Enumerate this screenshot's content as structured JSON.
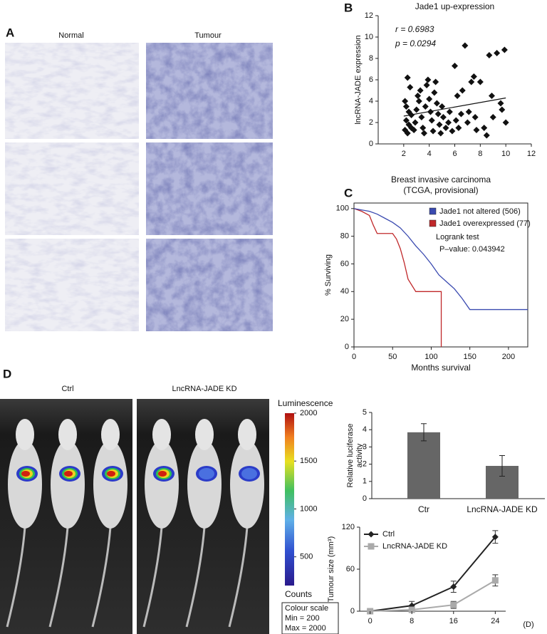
{
  "figure": {
    "panel_a": {
      "letter": "A",
      "normal": "Normal",
      "tumour": "Tumour"
    },
    "panel_b": {
      "letter": "B"
    },
    "panel_c": {
      "letter": "C"
    },
    "panel_d": {
      "letter": "D",
      "ctrl": "Ctrl",
      "kd": "LncRNA-JADE KD"
    }
  },
  "chart_data": [
    {
      "type": "scatter",
      "title": "Jade1 up-expression",
      "ylabel": "lncRNA-JADE expression",
      "annotations": [
        "r = 0.6983",
        "p = 0.0294"
      ],
      "color": "#111",
      "x": [
        2.3,
        2.5,
        2.1,
        2.2,
        2.4,
        2.6,
        2.2,
        2.4,
        2.6,
        2.1,
        2.3,
        2.8,
        2.9,
        3.0,
        3.1,
        3.2,
        3.3,
        3.4,
        3.5,
        3.6,
        3.7,
        3.8,
        3.9,
        4.0,
        4.1,
        4.2,
        4.3,
        4.4,
        4.5,
        4.6,
        4.7,
        4.8,
        4.9,
        5.0,
        5.1,
        5.3,
        5.5,
        5.6,
        5.8,
        6.0,
        6.1,
        6.2,
        6.3,
        6.5,
        6.6,
        6.8,
        7.0,
        7.1,
        7.3,
        7.5,
        7.6,
        7.7,
        8.0,
        8.3,
        8.5,
        8.7,
        8.9,
        9.0,
        9.3,
        9.6,
        9.7,
        9.9,
        10.0
      ],
      "y": [
        6.2,
        5.3,
        4.0,
        3.5,
        3.0,
        2.7,
        2.2,
        1.8,
        1.5,
        1.3,
        1.0,
        1.3,
        2.0,
        3.2,
        4.5,
        4.0,
        5.0,
        2.5,
        1.5,
        1.0,
        3.5,
        5.5,
        6.0,
        4.2,
        3.0,
        2.2,
        1.2,
        4.8,
        5.8,
        3.8,
        2.8,
        1.8,
        1.0,
        3.5,
        2.5,
        1.5,
        2.0,
        3.0,
        1.2,
        7.3,
        2.2,
        4.5,
        1.5,
        2.8,
        5.0,
        9.2,
        2.0,
        3.0,
        5.8,
        6.3,
        2.5,
        1.3,
        5.8,
        1.5,
        0.8,
        8.3,
        4.5,
        2.5,
        8.5,
        3.8,
        3.2,
        8.8,
        2.0
      ],
      "trendline": {
        "x": [
          2,
          10
        ],
        "y": [
          2.6,
          4.3
        ]
      },
      "xlim": [
        0,
        12
      ],
      "ylim": [
        0,
        12
      ],
      "xticks": [
        2,
        4,
        6,
        8,
        10,
        12
      ],
      "yticks": [
        0,
        2,
        4,
        6,
        8,
        10,
        12
      ]
    },
    {
      "type": "line",
      "title": [
        "Breast invasive carcinoma",
        "(TCGA, provisional)"
      ],
      "xlabel": "Months survival",
      "ylabel": "% Surviving",
      "annotations": [
        "Logrank test",
        "P–value:  0.043942"
      ],
      "series": [
        {
          "name": "Jade1 not altered (506)",
          "color": "#3a4ab0",
          "x": [
            0,
            10,
            20,
            30,
            40,
            50,
            60,
            70,
            80,
            90,
            100,
            110,
            120,
            130,
            140,
            150,
            160,
            225
          ],
          "values": [
            100,
            99,
            98,
            96,
            93,
            90,
            86,
            80,
            73,
            67,
            60,
            52,
            47,
            42,
            35,
            27,
            27,
            27
          ]
        },
        {
          "name": "Jade1 overexpressed (77)",
          "color": "#c0282a",
          "x": [
            0,
            10,
            20,
            25,
            30,
            50,
            55,
            60,
            65,
            70,
            80,
            100,
            113,
            113
          ],
          "values": [
            100,
            98,
            95,
            88,
            82,
            82,
            78,
            71,
            61,
            49,
            40,
            40,
            40,
            0
          ]
        }
      ],
      "xlim": [
        0,
        225
      ],
      "ylim": [
        0,
        104
      ],
      "xticks": [
        0,
        50,
        100,
        150,
        200
      ],
      "yticks": [
        0,
        20,
        40,
        60,
        80,
        100
      ]
    },
    {
      "type": "bar",
      "ylabel": [
        "Relative luciferase",
        "activity"
      ],
      "color": "#666",
      "categories": [
        "Ctr",
        "LncRNA-JADE KD"
      ],
      "values": [
        3.85,
        1.9
      ],
      "errors": [
        0.5,
        0.6
      ],
      "ylim": [
        0,
        5
      ],
      "yticks": [
        0,
        1,
        2,
        3,
        4,
        5
      ]
    },
    {
      "type": "line",
      "ylabel": "Tumour size (mm³)",
      "xunit": "(D)",
      "series": [
        {
          "name": "Ctrl",
          "color": "#222",
          "marker": "diamond",
          "values": [
            0,
            8,
            35,
            106
          ],
          "errors": [
            2,
            6,
            8,
            9
          ]
        },
        {
          "name": "LncRNA-JADE KD",
          "color": "#aaa",
          "marker": "square",
          "values": [
            0,
            2,
            9,
            44
          ],
          "errors": [
            1,
            3,
            5,
            8
          ]
        }
      ],
      "x": [
        0,
        8,
        16,
        24
      ],
      "xlim": [
        -2,
        26
      ],
      "ylim": [
        0,
        120
      ],
      "xticks": [
        0,
        8,
        16,
        24
      ],
      "yticks": [
        0,
        60,
        120
      ]
    },
    {
      "type": "colorbar",
      "title": "Luminescence",
      "footer": "Counts",
      "note": [
        "Colour scale",
        "Min = 200",
        "Max = 2000"
      ],
      "ylim": [
        200,
        2000
      ],
      "yticks": [
        500,
        1000,
        1500,
        2000
      ]
    }
  ]
}
